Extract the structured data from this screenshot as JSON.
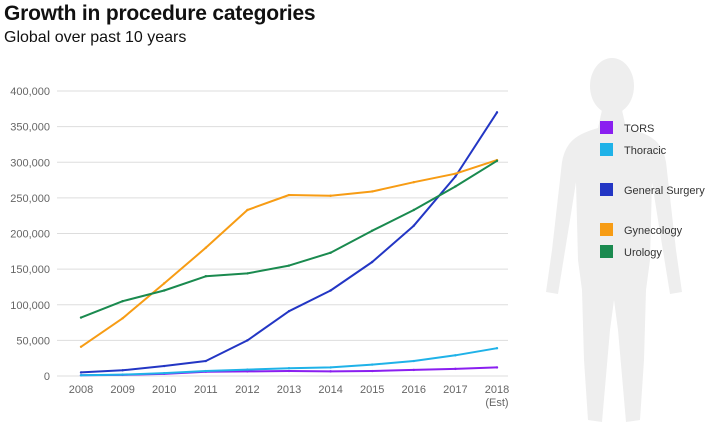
{
  "header": {
    "title": "Growth in procedure categories",
    "subtitle": "Global over past 10 years"
  },
  "colors": {
    "grid": "#dddddd",
    "axis_text": "#666666",
    "body_silhouette": "#eeeeee"
  },
  "chart_data": {
    "type": "line",
    "title": "Growth in procedure categories",
    "subtitle": "Global over past 10 years",
    "xlabel": "",
    "ylabel": "",
    "categories": [
      "2008",
      "2009",
      "2010",
      "2011",
      "2012",
      "2013",
      "2014",
      "2015",
      "2016",
      "2017",
      "2018"
    ],
    "x_sublabels": [
      "",
      "",
      "",
      "",
      "",
      "",
      "",
      "",
      "",
      "",
      "(Est)"
    ],
    "y_ticks": [
      "0",
      "50,000",
      "100,000",
      "150,000",
      "200,000",
      "250,000",
      "300,000",
      "350,000",
      "400,000"
    ],
    "ylim": [
      0,
      400000
    ],
    "grid": true,
    "legend_position": "right",
    "series": [
      {
        "name": "TORS",
        "color": "#8a1ff0",
        "values": [
          1000,
          1500,
          3000,
          6000,
          6500,
          7000,
          6500,
          7000,
          8500,
          10000,
          12000
        ]
      },
      {
        "name": "Thoracic",
        "color": "#1fb2e8",
        "values": [
          1000,
          2000,
          4000,
          7000,
          9000,
          11000,
          12000,
          16000,
          21000,
          29000,
          39000
        ]
      },
      {
        "name": "General Surgery",
        "color": "#2336c4",
        "values": [
          5000,
          8000,
          14000,
          21000,
          50000,
          91000,
          120000,
          160000,
          211000,
          280000,
          370000
        ]
      },
      {
        "name": "Gynecology",
        "color": "#f79c14",
        "values": [
          41000,
          81000,
          130000,
          180000,
          233000,
          254000,
          253000,
          259000,
          272000,
          284000,
          303000
        ]
      },
      {
        "name": "Urology",
        "color": "#1a8a4f",
        "values": [
          82000,
          105000,
          120000,
          140000,
          144000,
          155000,
          173000,
          204000,
          233000,
          266000,
          302000
        ]
      }
    ]
  }
}
